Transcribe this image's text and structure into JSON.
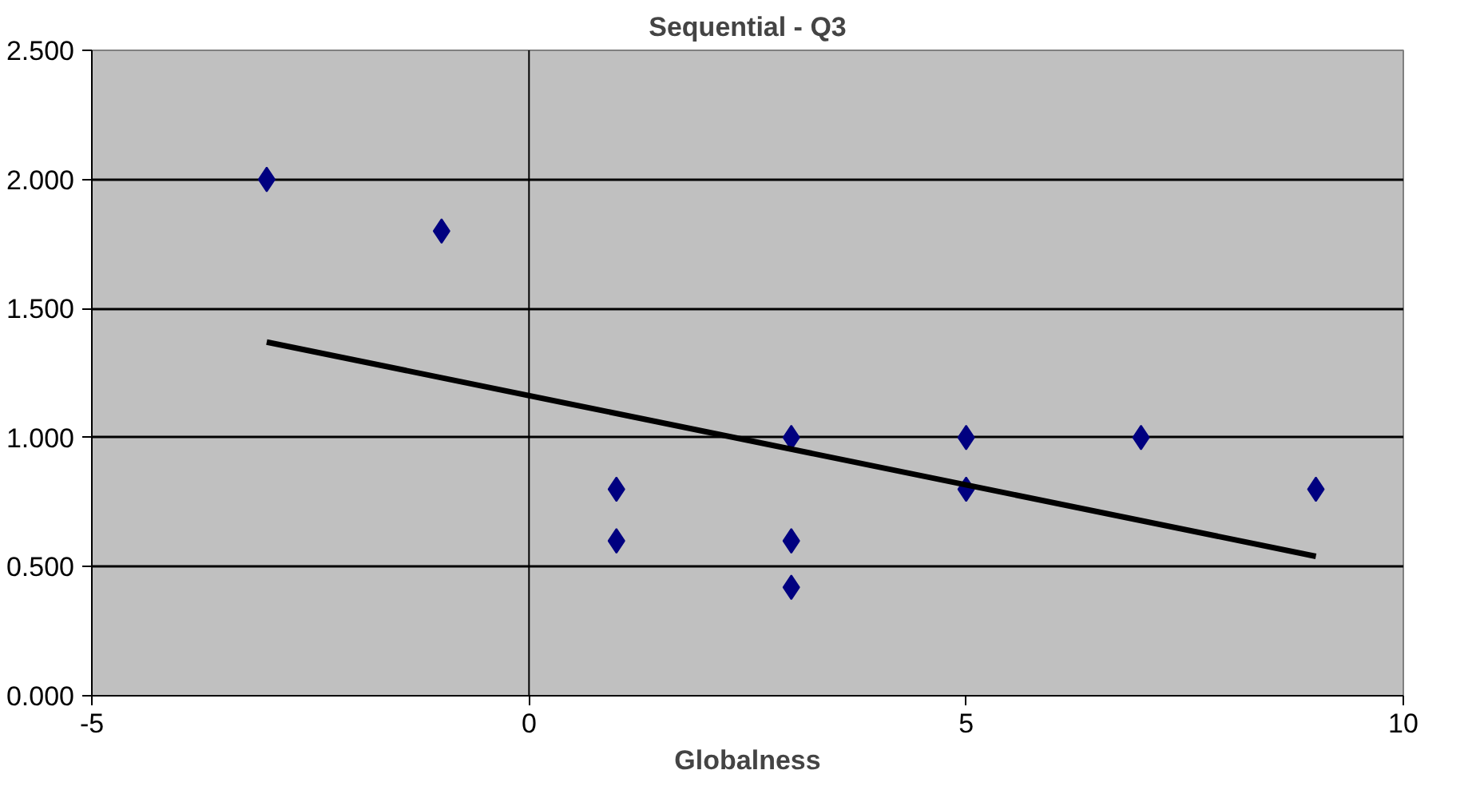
{
  "chart_data": {
    "type": "scatter",
    "title": "Sequential - Q3",
    "xlabel": "Globalness",
    "xlim": [
      -5,
      10
    ],
    "xticks": [
      -5,
      0,
      5,
      10
    ],
    "ylim": [
      0,
      2.5
    ],
    "yticks": [
      {
        "value": 0,
        "label": "0.000"
      },
      {
        "value": 0.5,
        "label": "0.500"
      },
      {
        "value": 1,
        "label": "1.000"
      },
      {
        "value": 1.5,
        "label": "1.500"
      },
      {
        "value": 2,
        "label": "2.000"
      },
      {
        "value": 2.5,
        "label": "2.500"
      }
    ],
    "grid": "y",
    "marker": "diamond",
    "series": [
      {
        "color": "#000080",
        "x": [
          -3,
          -1,
          1,
          1,
          3,
          3,
          3,
          5,
          5,
          7,
          9
        ],
        "values": [
          2.0,
          1.8,
          0.8,
          0.6,
          1.0,
          0.6,
          0.42,
          1.0,
          0.8,
          1.0,
          0.8
        ]
      },
      {
        "type": "line",
        "marker": "none",
        "color": "#000000",
        "x": [
          -3,
          9
        ],
        "values": [
          1.37,
          0.54
        ]
      }
    ]
  }
}
